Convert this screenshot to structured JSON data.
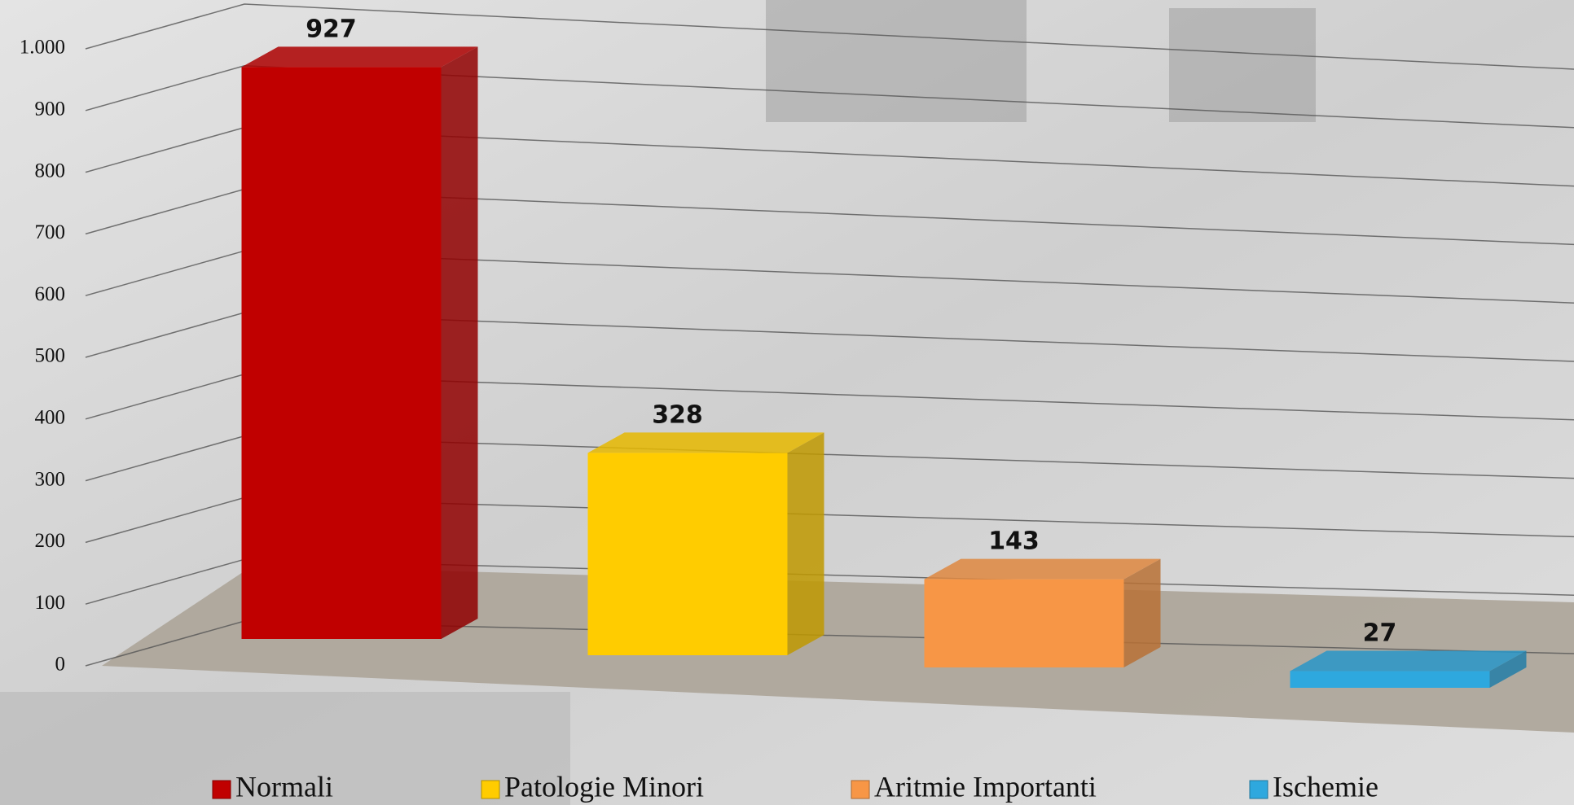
{
  "chart_data": {
    "type": "bar3d",
    "series": [
      {
        "name": "Normali",
        "color": "#c00000",
        "values": [
          927
        ]
      },
      {
        "name": "Patologie Minori",
        "color": "#ffcc00",
        "values": [
          328
        ]
      },
      {
        "name": "Aritmie Importanti",
        "color": "#f79646",
        "values": [
          143
        ]
      },
      {
        "name": "Ischemie",
        "color": "#2ea8de",
        "values": [
          27
        ]
      }
    ],
    "ylim": [
      0,
      1000
    ],
    "yticks": [
      0,
      100,
      200,
      300,
      400,
      500,
      600,
      700,
      800,
      900,
      {
        "value": 1000,
        "label": "1.000"
      }
    ],
    "grid": true,
    "legend": "bottom"
  }
}
